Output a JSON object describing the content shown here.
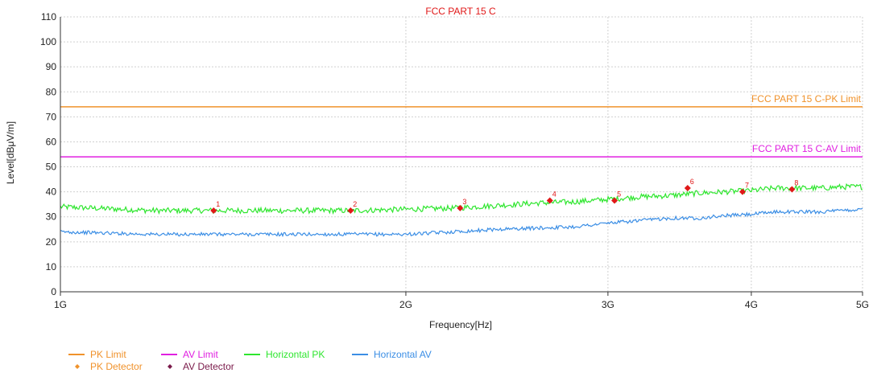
{
  "chart_data": {
    "type": "line",
    "title": "FCC PART 15 C",
    "xlabel": "Frequency[Hz]",
    "ylabel": "Level[dBμV/m]",
    "x_scale": "log",
    "x_range_ghz": [
      1,
      5
    ],
    "ylim": [
      0,
      110
    ],
    "y_ticks": [
      0,
      10,
      20,
      30,
      40,
      50,
      60,
      70,
      80,
      90,
      100,
      110
    ],
    "x_ticks": [
      {
        "value_ghz": 1,
        "label": "1G"
      },
      {
        "value_ghz": 2,
        "label": "2G"
      },
      {
        "value_ghz": 3,
        "label": "3G"
      },
      {
        "value_ghz": 4,
        "label": "4G"
      },
      {
        "value_ghz": 5,
        "label": "5G"
      }
    ],
    "grid": true,
    "limits": [
      {
        "name": "PK Limit",
        "label": "FCC PART 15 C-PK Limit",
        "value": 74,
        "color": "#F0922B"
      },
      {
        "name": "AV Limit",
        "label": "FCC PART 15 C-AV Limit",
        "value": 54,
        "color": "#E020E0"
      }
    ],
    "series": [
      {
        "name": "Horizontal PK",
        "color": "#2EE62E",
        "x_ghz": [
          1.0,
          1.2,
          1.4,
          1.6,
          1.8,
          2.0,
          2.2,
          2.4,
          2.6,
          2.8,
          3.0,
          3.2,
          3.4,
          3.6,
          3.8,
          4.0,
          4.2,
          4.4,
          4.6,
          4.8,
          5.0
        ],
        "values": [
          34,
          32.5,
          32.5,
          32.5,
          32.5,
          33,
          33.5,
          34.5,
          35.5,
          36,
          37,
          38,
          38.5,
          39.5,
          40,
          40.5,
          41.5,
          41.5,
          41.5,
          42,
          42
        ]
      },
      {
        "name": "Horizontal AV",
        "color": "#3B8EE5",
        "x_ghz": [
          1.0,
          1.2,
          1.4,
          1.6,
          1.8,
          2.0,
          2.2,
          2.4,
          2.6,
          2.8,
          3.0,
          3.2,
          3.4,
          3.6,
          3.8,
          4.0,
          4.2,
          4.4,
          4.6,
          4.8,
          5.0
        ],
        "values": [
          24,
          23,
          23,
          23,
          23,
          23,
          24,
          25,
          25.5,
          26,
          27.5,
          28.5,
          29.5,
          29.5,
          30.5,
          31,
          32,
          32,
          32,
          32.5,
          33
        ]
      }
    ],
    "markers": [
      {
        "label": "1",
        "x_ghz": 1.36,
        "y": 32.5
      },
      {
        "label": "2",
        "x_ghz": 1.79,
        "y": 32.5
      },
      {
        "label": "3",
        "x_ghz": 2.23,
        "y": 33.5
      },
      {
        "label": "4",
        "x_ghz": 2.67,
        "y": 36.5
      },
      {
        "label": "5",
        "x_ghz": 3.04,
        "y": 36.5
      },
      {
        "label": "6",
        "x_ghz": 3.52,
        "y": 41.5
      },
      {
        "label": "7",
        "x_ghz": 3.93,
        "y": 40
      },
      {
        "label": "8",
        "x_ghz": 4.34,
        "y": 41
      }
    ],
    "marker_color": "#E01818",
    "legend": {
      "position": "bottom-left",
      "items": [
        {
          "label": "PK Limit",
          "color": "#F0922B",
          "kind": "line"
        },
        {
          "label": "AV Limit",
          "color": "#E020E0",
          "kind": "line"
        },
        {
          "label": "Horizontal PK",
          "color": "#2EE62E",
          "kind": "line"
        },
        {
          "label": "Horizontal AV",
          "color": "#3B8EE5",
          "kind": "line"
        },
        {
          "label": "PK Detector",
          "color": "#F0922B",
          "kind": "diamond"
        },
        {
          "label": "AV Detector",
          "color": "#7A1A4A",
          "kind": "diamond"
        }
      ]
    }
  }
}
